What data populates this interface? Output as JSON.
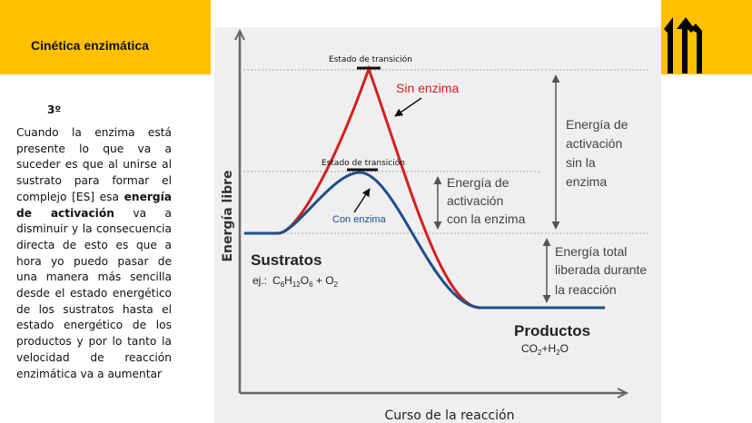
{
  "header": {
    "title": "Cinética enzimática"
  },
  "text": {
    "step": "3º",
    "p1": "Cuando la enzima está presente lo que va a suceder es que al unirse al sustrato para formar el complejo [ES] esa ",
    "p_bold": "energía de activación",
    "p2": " va a disminuir y la consecuencia directa de esto es que a hora yo puedo pasar de una manera más sencilla desde el estado energético de los sustratos hasta el estado energético de los productos y por lo tanto la velocidad de reacción enzimática va a aumentar"
  },
  "diagram": {
    "y_label": "Energía libre",
    "x_label": "Curso de la reacción",
    "transition_state_top": "Estado de transición",
    "transition_state_mid": "Estado de transición",
    "sin_enzima": "Sin enzima",
    "con_enzima": "Con enzima",
    "activation_sin": [
      "Energía de",
      "activación",
      "sin la",
      "enzima"
    ],
    "activation_con": [
      "Energía de",
      "activación",
      "con la enzima"
    ],
    "total_energy": [
      "Energía total",
      "liberada durante",
      "la reacción"
    ],
    "sustratos": "Sustratos",
    "sustratos_example_prefix": "ej.:",
    "productos": "Productos",
    "colors": {
      "sin": "#D42020",
      "con": "#1F4E8C",
      "plot_bg": "#EFEFEF",
      "accent": "#FFC000"
    }
  }
}
